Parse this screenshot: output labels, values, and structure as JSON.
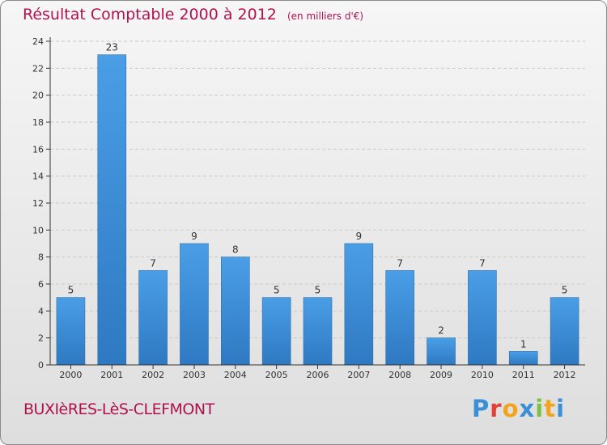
{
  "header": {
    "title": "Résultat Comptable 2000 à 2012",
    "unit": "(en milliers d'€)"
  },
  "footer": {
    "commune": "BUXIèRES-LèS-CLEFMONT",
    "logo_letters": [
      "P",
      "r",
      "o",
      "x",
      "i",
      "t",
      "i"
    ],
    "logo_colors": [
      "#3a8fd6",
      "#e2413a",
      "#f2a51a",
      "#3a8fd6",
      "#7cc142",
      "#f2a51a",
      "#3a8fd6"
    ]
  },
  "colors": {
    "bar": "#4a9ee6",
    "bar_dark": "#2e79c2",
    "title": "#b0124e",
    "axis": "#333333"
  },
  "chart_data": {
    "type": "bar",
    "title": "Résultat Comptable 2000 à 2012",
    "categories": [
      "2000",
      "2001",
      "2002",
      "2003",
      "2004",
      "2005",
      "2006",
      "2007",
      "2008",
      "2009",
      "2010",
      "2011",
      "2012"
    ],
    "values": [
      5,
      23,
      7,
      9,
      8,
      5,
      5,
      9,
      7,
      2,
      7,
      1,
      5
    ],
    "ylim": [
      0,
      24
    ],
    "yticks": [
      0,
      2,
      4,
      6,
      8,
      10,
      12,
      14,
      16,
      18,
      20,
      22,
      24
    ],
    "grid": true
  }
}
